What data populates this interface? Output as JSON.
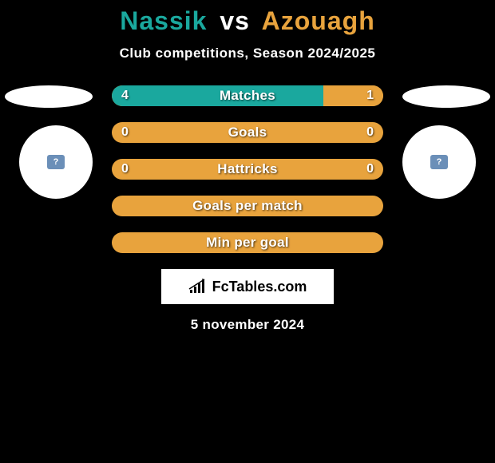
{
  "title": {
    "player1": "Nassik",
    "vs": "vs",
    "player2": "Azouagh",
    "player1_color": "#1aa89e",
    "vs_color": "#ffffff",
    "player2_color": "#e8a33d"
  },
  "subtitle": "Club competitions, Season 2024/2025",
  "colors": {
    "bg": "#000000",
    "white": "#ffffff",
    "left_accent": "#1aa89e",
    "right_accent": "#e8a33d",
    "badge_bg": "#6b8fb8",
    "badge_text": "#ffffff"
  },
  "side_shapes": {
    "ellipse_color": "#ffffff",
    "circle_color": "#ffffff",
    "badge_symbol": "?"
  },
  "bars": {
    "track_color_default": "#e8a33d",
    "rows": [
      {
        "label": "Matches",
        "left_val": "4",
        "right_val": "1",
        "left_fill_pct": 78,
        "right_fill_pct": 22,
        "left_color": "#1aa89e",
        "right_color": "#e8a33d",
        "show_left_val": true,
        "show_right_val": true
      },
      {
        "label": "Goals",
        "left_val": "0",
        "right_val": "0",
        "left_fill_pct": 0,
        "right_fill_pct": 0,
        "left_color": "#1aa89e",
        "right_color": "#e8a33d",
        "show_left_val": true,
        "show_right_val": true
      },
      {
        "label": "Hattricks",
        "left_val": "0",
        "right_val": "0",
        "left_fill_pct": 0,
        "right_fill_pct": 0,
        "left_color": "#1aa89e",
        "right_color": "#e8a33d",
        "show_left_val": true,
        "show_right_val": true
      },
      {
        "label": "Goals per match",
        "left_val": "",
        "right_val": "",
        "left_fill_pct": 0,
        "right_fill_pct": 0,
        "left_color": "#1aa89e",
        "right_color": "#e8a33d",
        "show_left_val": false,
        "show_right_val": false
      },
      {
        "label": "Min per goal",
        "left_val": "",
        "right_val": "",
        "left_fill_pct": 0,
        "right_fill_pct": 0,
        "left_color": "#1aa89e",
        "right_color": "#e8a33d",
        "show_left_val": false,
        "show_right_val": false
      }
    ]
  },
  "logo": {
    "text": "FcTables.com",
    "text_color": "#000000",
    "bg": "#ffffff"
  },
  "date": "5 november 2024"
}
